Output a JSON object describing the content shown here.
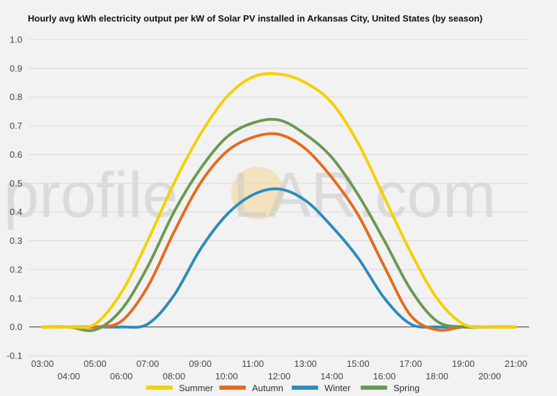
{
  "chart_data": {
    "type": "line",
    "title": "Hourly avg kWh electricity output per kW of Solar PV installed in Arkansas City, United States (by season)",
    "xlabel": "",
    "ylabel": "",
    "ylim": [
      -0.1,
      1.0
    ],
    "y_ticks": [
      "-0.1",
      "0.0",
      "0.1",
      "0.2",
      "0.3",
      "0.4",
      "0.5",
      "0.6",
      "0.7",
      "0.8",
      "0.9",
      "1.0"
    ],
    "categories": [
      "03:00",
      "04:00",
      "05:00",
      "06:00",
      "07:00",
      "08:00",
      "09:00",
      "10:00",
      "11:00",
      "12:00",
      "13:00",
      "14:00",
      "15:00",
      "16:00",
      "17:00",
      "18:00",
      "19:00",
      "20:00",
      "21:00"
    ],
    "grid": true,
    "legend_position": "bottom",
    "watermark": {
      "left": "profile",
      "right": "LAR.com"
    },
    "series": [
      {
        "name": "Summer",
        "color": "#f5d000",
        "values": [
          0.0,
          0.0,
          0.01,
          0.12,
          0.3,
          0.5,
          0.67,
          0.8,
          0.87,
          0.88,
          0.85,
          0.78,
          0.64,
          0.45,
          0.26,
          0.1,
          0.01,
          0.0,
          0.0
        ]
      },
      {
        "name": "Autumn",
        "color": "#e36c1f",
        "values": [
          0.0,
          0.0,
          0.0,
          0.02,
          0.14,
          0.33,
          0.5,
          0.61,
          0.66,
          0.67,
          0.62,
          0.52,
          0.39,
          0.21,
          0.04,
          -0.01,
          0.0,
          0.0,
          0.0
        ]
      },
      {
        "name": "Winter",
        "color": "#2e8bbd",
        "values": [
          0.0,
          0.0,
          0.0,
          0.0,
          0.01,
          0.11,
          0.27,
          0.39,
          0.46,
          0.48,
          0.44,
          0.35,
          0.24,
          0.1,
          0.01,
          0.0,
          0.0,
          0.0,
          0.0
        ]
      },
      {
        "name": "Spring",
        "color": "#6a9a50",
        "values": [
          0.0,
          0.0,
          -0.01,
          0.06,
          0.21,
          0.4,
          0.55,
          0.66,
          0.71,
          0.72,
          0.67,
          0.59,
          0.46,
          0.3,
          0.13,
          0.02,
          0.0,
          0.0,
          0.0
        ]
      }
    ]
  }
}
